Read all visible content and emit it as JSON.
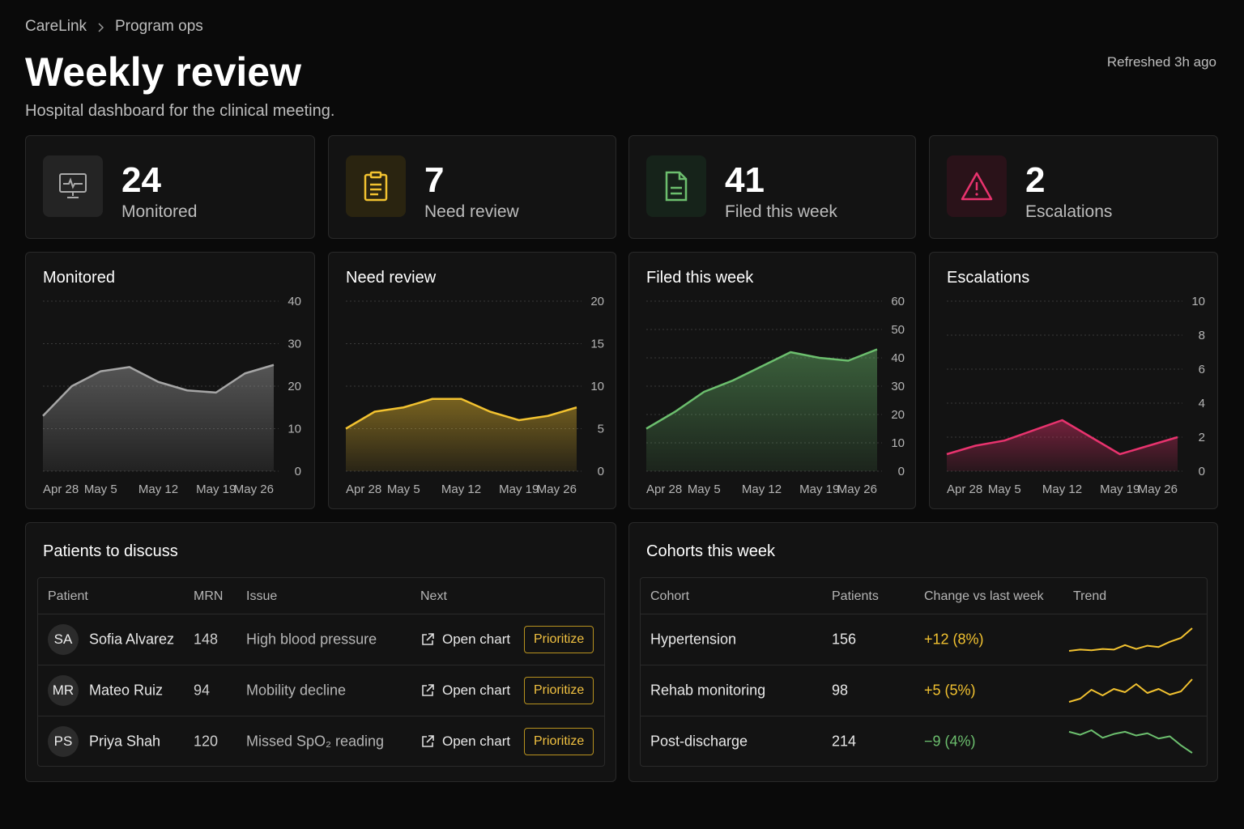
{
  "breadcrumb": [
    "CareLink",
    "Program ops"
  ],
  "title": "Weekly review",
  "subtitle": "Hospital dashboard for the clinical meeting.",
  "refreshed": "Refreshed 3h ago",
  "kpis": [
    {
      "value": 24,
      "label": "Monitored"
    },
    {
      "value": 7,
      "label": "Need review"
    },
    {
      "value": 41,
      "label": "Filed this week"
    },
    {
      "value": 2,
      "label": "Escalations"
    }
  ],
  "chart_data": [
    {
      "type": "area",
      "title": "Monitored",
      "color": "#a6a6a6",
      "categories": [
        "Apr 28",
        null,
        "May 5",
        null,
        "May 12",
        null,
        "May 19",
        null,
        "May 26"
      ],
      "values": [
        13,
        20,
        23.5,
        24.5,
        21,
        19,
        18.5,
        23,
        25
      ],
      "ylim": [
        0,
        40
      ],
      "yticks": [
        0,
        10,
        20,
        30,
        40
      ],
      "grid": true
    },
    {
      "type": "area",
      "title": "Need review",
      "color": "#f2c230",
      "categories": [
        "Apr 28",
        null,
        "May 5",
        null,
        "May 12",
        null,
        "May 19",
        null,
        "May 26"
      ],
      "values": [
        5,
        7,
        7.5,
        8.5,
        8.5,
        7,
        6,
        6.5,
        7.5
      ],
      "ylim": [
        0,
        20
      ],
      "yticks": [
        0,
        5,
        10,
        15,
        20
      ],
      "grid": true
    },
    {
      "type": "area",
      "title": "Filed this week",
      "color": "#6cbf6e",
      "categories": [
        "Apr 28",
        null,
        "May 5",
        null,
        "May 12",
        null,
        "May 19",
        null,
        "May 26"
      ],
      "values": [
        15,
        21,
        28,
        32,
        37,
        42,
        40,
        39,
        43
      ],
      "ylim": [
        0,
        60
      ],
      "yticks": [
        0,
        10,
        20,
        30,
        40,
        50,
        60
      ],
      "grid": true
    },
    {
      "type": "area",
      "title": "Escalations",
      "color": "#e8336e",
      "categories": [
        "Apr 28",
        null,
        "May 5",
        null,
        "May 12",
        null,
        "May 19",
        null,
        "May 26"
      ],
      "values": [
        1,
        1.5,
        1.8,
        2.4,
        3,
        2,
        1,
        1.5,
        2
      ],
      "ylim": [
        0,
        10
      ],
      "yticks": [
        0,
        2,
        4,
        6,
        8,
        10
      ],
      "grid": true
    }
  ],
  "patients": {
    "title": "Patients to discuss",
    "columns": [
      "Patient",
      "MRN",
      "Issue",
      "Next"
    ],
    "rows": [
      {
        "initials": "SA",
        "name": "Sofia Alvarez",
        "mrn": 148,
        "issue": "High blood pressure",
        "action": "Open chart",
        "button": "Prioritize"
      },
      {
        "initials": "MR",
        "name": "Mateo Ruiz",
        "mrn": 94,
        "issue": "Mobility decline",
        "action": "Open chart",
        "button": "Prioritize"
      },
      {
        "initials": "PS",
        "name": "Priya Shah",
        "mrn": 120,
        "issue": "Missed SpO₂ reading",
        "action": "Open chart",
        "button": "Prioritize"
      }
    ]
  },
  "cohorts": {
    "title": "Cohorts this week",
    "columns": [
      "Cohort",
      "Patients",
      "Change vs last week",
      "Trend"
    ],
    "rows": [
      {
        "name": "Hypertension",
        "patients": 156,
        "change": "+12 (8%)",
        "color": "#f2c230",
        "trend": [
          3,
          3.2,
          3.1,
          3.3,
          3.2,
          3.9,
          3.3,
          3.8,
          3.6,
          4.4,
          5,
          6.5
        ]
      },
      {
        "name": "Rehab monitoring",
        "patients": 98,
        "change": "+5 (5%)",
        "color": "#f2c230",
        "trend": [
          3,
          3.4,
          4.5,
          3.8,
          4.6,
          4.2,
          5.2,
          4.1,
          4.6,
          3.9,
          4.3,
          5.8
        ]
      },
      {
        "name": "Post-discharge",
        "patients": 214,
        "change": "−9 (4%)",
        "color": "#6cbf6e",
        "trend": [
          6,
          5.6,
          6.2,
          5.2,
          5.7,
          6,
          5.5,
          5.8,
          5.1,
          5.4,
          4.2,
          3.2
        ]
      }
    ]
  }
}
